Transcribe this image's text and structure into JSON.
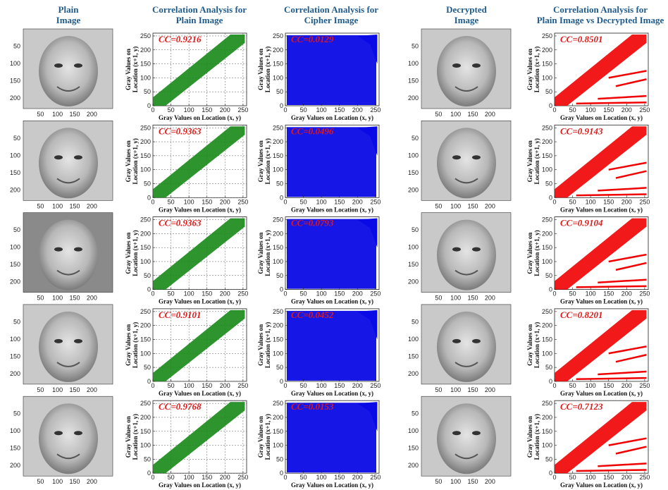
{
  "column_headers": [
    [
      "Plain",
      "Image"
    ],
    [
      "Correlation Analysis for",
      "Plain Image"
    ],
    [
      "Correlation Analysis for",
      "Cipher Image"
    ],
    [
      "Decrypted",
      "Image"
    ],
    [
      "Correlation Analysis for",
      "Plain Image vs Decrypted Image"
    ]
  ],
  "image_axis": {
    "xticks": [
      50,
      100,
      150,
      200
    ],
    "yticks": [
      50,
      100,
      150,
      200
    ]
  },
  "scatter_axis": {
    "xlabel": "Gray Values on Location (x, y)",
    "ylabel": [
      "Gray Values on",
      "Location (x+1, y)"
    ],
    "xlim": [
      0,
      260
    ],
    "ylim": [
      0,
      260
    ],
    "xticks": [
      0,
      50,
      100,
      150,
      200,
      250
    ],
    "yticks": [
      0,
      50,
      100,
      150,
      200,
      250
    ]
  },
  "cc_symbol": "CC=",
  "scatter_colors": [
    "#178a17",
    "#0a0ae6",
    "#f00000"
  ],
  "scatter_grid": [
    true,
    false,
    false
  ],
  "rows": [
    {
      "cc": [
        0.9216,
        0.0129,
        0.8501
      ]
    },
    {
      "cc": [
        0.9363,
        0.0496,
        0.9143
      ]
    },
    {
      "cc": [
        0.9363,
        0.0793,
        0.9104
      ]
    },
    {
      "cc": [
        0.9101,
        0.0452,
        0.8201
      ]
    },
    {
      "cc": [
        0.9768,
        0.0153,
        0.7123
      ]
    }
  ]
}
